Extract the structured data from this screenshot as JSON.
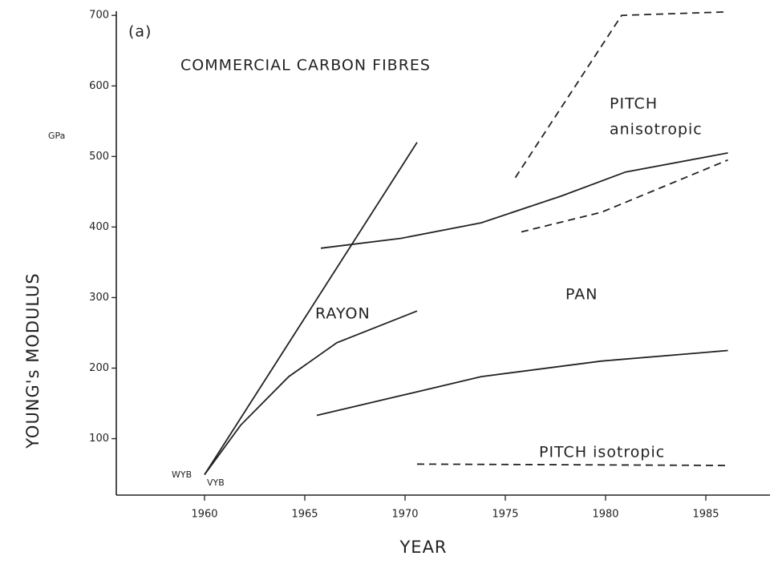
{
  "chart_data": {
    "type": "line",
    "x_label": "YEAR",
    "y_label": "YOUNG's MODULUS",
    "annotations": [
      "(a)",
      "COMMERCIAL CARBON FIBRES",
      "GPa",
      "PITCH",
      "anisotropic",
      "RAYON",
      "PAN",
      "PITCH isotropic",
      "WYB",
      "VYB"
    ],
    "xlim": [
      1955.6,
      1988.2
    ],
    "xticks": [
      1960,
      1965,
      1970,
      1975,
      1980,
      1985
    ],
    "ylim": [
      20,
      715
    ],
    "yticks": [
      100,
      200,
      300,
      400,
      500,
      600,
      700
    ],
    "series": [
      {
        "color": "#222",
        "style": "solid",
        "x": [
          1960,
          1970.6
        ],
        "values": [
          49,
          520
        ]
      },
      {
        "color": "#222",
        "style": "solid",
        "x": [
          1960,
          1961.8,
          1964.2,
          1966.6,
          1970.6
        ],
        "values": [
          49,
          119,
          188,
          236,
          281
        ]
      },
      {
        "color": "#222",
        "style": "solid",
        "x": [
          1965.8,
          1969.8,
          1973.8,
          1977.8,
          1981,
          1986.1
        ],
        "values": [
          370,
          384,
          406,
          444,
          478,
          505
        ]
      },
      {
        "color": "#222",
        "style": "dashed",
        "x": [
          1975.8,
          1979.8,
          1986.1
        ],
        "values": [
          393,
          421,
          495
        ]
      },
      {
        "color": "#222",
        "style": "solid",
        "x": [
          1965.6,
          1969.8,
          1973.8,
          1979.8,
          1986.1
        ],
        "values": [
          133,
          161,
          188,
          210,
          225
        ]
      },
      {
        "color": "#222",
        "style": "dashed",
        "x": [
          1975.5,
          1980.8,
          1986.1
        ],
        "values": [
          470,
          700,
          705
        ]
      },
      {
        "color": "#222",
        "style": "dashed",
        "x": [
          1970.6,
          1986.1
        ],
        "values": [
          64,
          62
        ]
      }
    ]
  }
}
